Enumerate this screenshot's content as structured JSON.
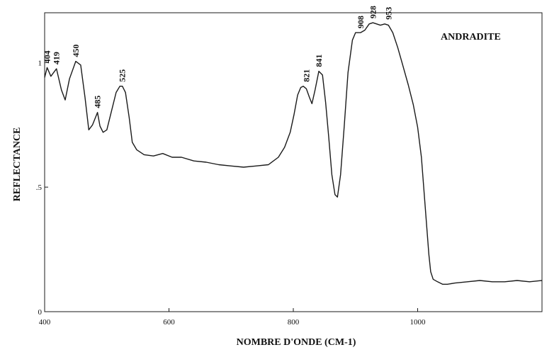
{
  "chart_data": {
    "type": "line",
    "sample_label": "ANDRADITE",
    "xlabel": "NOMBRE D'ONDE (CM-1)",
    "ylabel": "REFLECTANCE",
    "xlim": [
      400,
      1200
    ],
    "ylim": [
      0,
      1.2
    ],
    "x_ticks": [
      {
        "value": 400,
        "label": "400"
      },
      {
        "value": 600,
        "label": "600"
      },
      {
        "value": 800,
        "label": "800"
      },
      {
        "value": 1000,
        "label": "1000"
      }
    ],
    "y_ticks": [
      {
        "value": 0,
        "label": "0"
      },
      {
        "value": 0.5,
        "label": ".5"
      },
      {
        "value": 1,
        "label": "1"
      }
    ],
    "grid": false,
    "legend": "none",
    "line_color": "#1a1a1a",
    "peak_labels": [
      {
        "x": 404,
        "y": 0.98,
        "label": "404"
      },
      {
        "x": 419,
        "y": 0.975,
        "label": "419"
      },
      {
        "x": 450,
        "y": 1.005,
        "label": "450"
      },
      {
        "x": 485,
        "y": 0.8,
        "label": "485"
      },
      {
        "x": 525,
        "y": 0.905,
        "label": "525"
      },
      {
        "x": 821,
        "y": 0.905,
        "label": "821"
      },
      {
        "x": 841,
        "y": 0.965,
        "label": "841"
      },
      {
        "x": 908,
        "y": 1.12,
        "label": "908"
      },
      {
        "x": 928,
        "y": 1.16,
        "label": "928"
      },
      {
        "x": 953,
        "y": 1.155,
        "label": "953"
      }
    ],
    "series": [
      {
        "x": [
          400,
          404,
          410,
          419,
          427,
          433,
          440,
          450,
          458,
          465,
          471,
          477,
          481,
          485,
          489,
          494,
          500,
          507,
          515,
          521,
          525,
          530,
          536,
          541,
          548,
          560,
          575,
          590,
          605,
          620,
          640,
          660,
          680,
          700,
          720,
          740,
          760,
          776,
          786,
          795,
          801,
          807,
          812,
          816,
          821,
          826,
          830,
          835,
          841,
          847,
          852,
          857,
          862,
          867,
          871,
          876,
          882,
          888,
          895,
          900,
          908,
          915,
          922,
          928,
          934,
          940,
          947,
          953,
          960,
          968,
          976,
          985,
          993,
          1000,
          1006,
          1010,
          1014,
          1018,
          1021,
          1025,
          1032,
          1040,
          1048,
          1060,
          1080,
          1100,
          1120,
          1140,
          1160,
          1180,
          1200
        ],
        "y": [
          0.94,
          0.98,
          0.945,
          0.975,
          0.89,
          0.85,
          0.935,
          1.005,
          0.99,
          0.86,
          0.73,
          0.75,
          0.775,
          0.8,
          0.745,
          0.72,
          0.73,
          0.8,
          0.88,
          0.905,
          0.905,
          0.88,
          0.78,
          0.68,
          0.65,
          0.63,
          0.625,
          0.635,
          0.62,
          0.62,
          0.605,
          0.6,
          0.59,
          0.585,
          0.58,
          0.585,
          0.59,
          0.62,
          0.66,
          0.72,
          0.79,
          0.87,
          0.9,
          0.905,
          0.895,
          0.86,
          0.835,
          0.89,
          0.965,
          0.95,
          0.84,
          0.7,
          0.55,
          0.47,
          0.46,
          0.55,
          0.75,
          0.96,
          1.09,
          1.12,
          1.12,
          1.13,
          1.155,
          1.16,
          1.155,
          1.15,
          1.155,
          1.15,
          1.12,
          1.06,
          0.99,
          0.91,
          0.83,
          0.74,
          0.62,
          0.49,
          0.36,
          0.23,
          0.16,
          0.13,
          0.12,
          0.11,
          0.11,
          0.115,
          0.12,
          0.125,
          0.12,
          0.12,
          0.125,
          0.12,
          0.125
        ]
      }
    ]
  }
}
